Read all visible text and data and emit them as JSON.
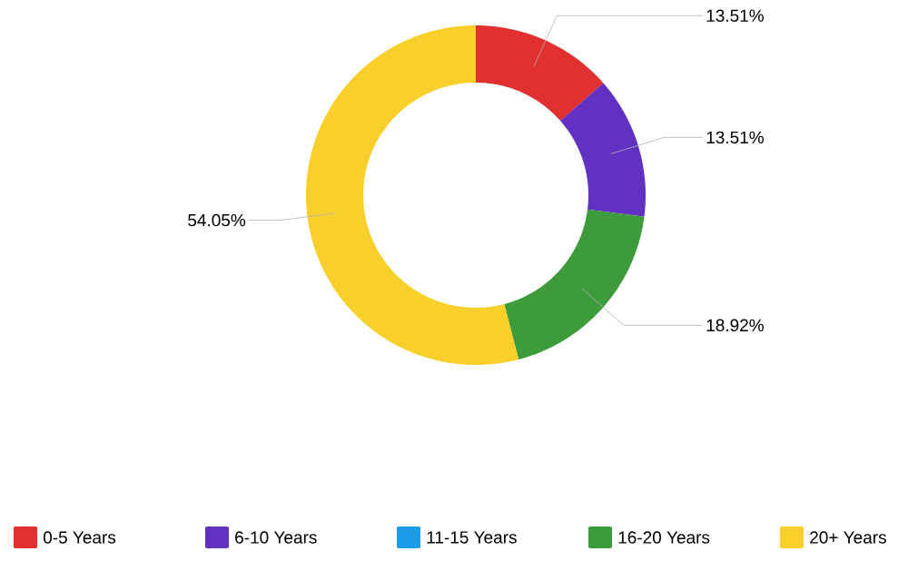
{
  "chart_data": {
    "type": "donut",
    "categories": [
      "0-5 Years",
      "6-10 Years",
      "11-15 Years",
      "16-20 Years",
      "20+ Years"
    ],
    "values": [
      13.51,
      13.51,
      0,
      18.92,
      54.05
    ],
    "colors": [
      "#e0302f",
      "#6131c2",
      "#1b9cea",
      "#3d9b3c",
      "#f9cf2b"
    ],
    "value_labels": [
      "13.51%",
      "13.51%",
      null,
      "18.92%",
      "54.05%"
    ],
    "legend": "bottom"
  }
}
